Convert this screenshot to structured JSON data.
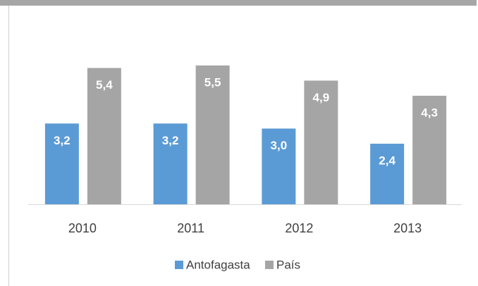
{
  "chart_data": {
    "type": "bar",
    "categories": [
      "2010",
      "2011",
      "2012",
      "2013"
    ],
    "series": [
      {
        "name": "Antofagasta",
        "color": "#5b9bd5",
        "values": [
          3.2,
          3.2,
          3.0,
          2.4
        ],
        "value_labels": [
          "3,2",
          "3,2",
          "3,0",
          "2,4"
        ]
      },
      {
        "name": "País",
        "color": "#a5a5a5",
        "values": [
          5.4,
          5.5,
          4.9,
          4.3
        ],
        "value_labels": [
          "5,4",
          "5,5",
          "4,9",
          "4,3"
        ]
      }
    ],
    "ylim": [
      0,
      6
    ],
    "legend": "bottom"
  }
}
